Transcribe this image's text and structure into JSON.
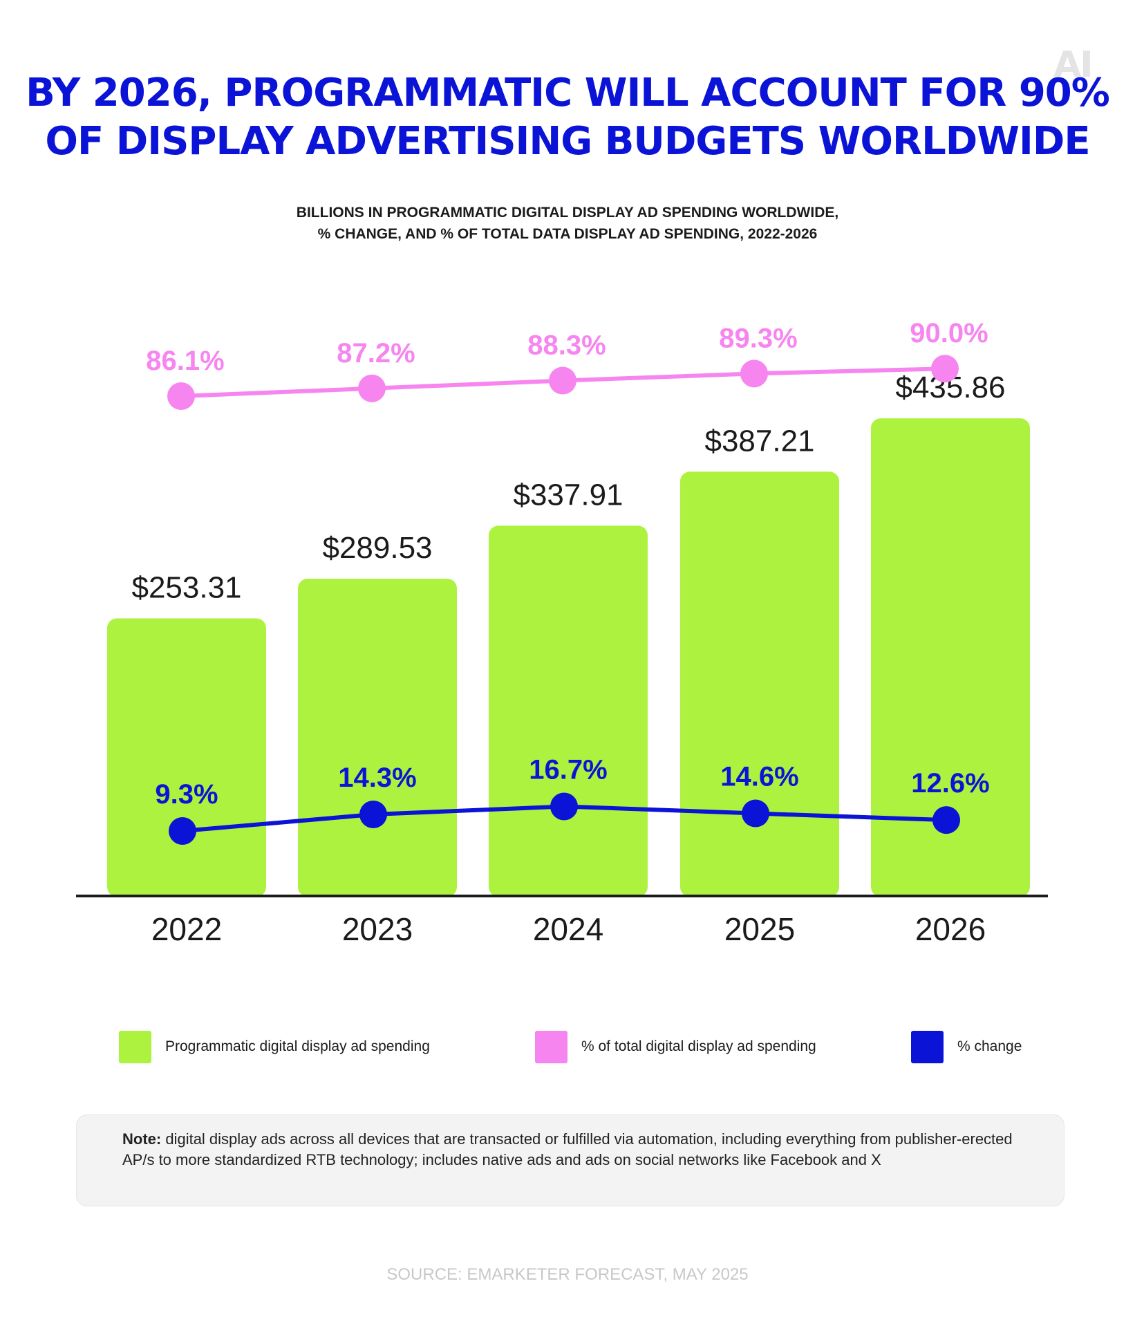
{
  "brand": {
    "logo_text": "AI"
  },
  "title": {
    "line1": "BY 2026, PROGRAMMATIC WILL ACCOUNT FOR 90%",
    "line2": "OF DISPLAY ADVERTISING BUDGETS WORLDWIDE"
  },
  "subtitle": {
    "line1": "BILLIONS IN PROGRAMMATIC  DIGITAL DISPLAY AD SPENDING WORLDWIDE,",
    "line2": "% CHANGE, AND % OF TOTAL DATA DISPLAY AD SPENDING, 2022-2026"
  },
  "colors": {
    "bar": "#adf23f",
    "share": "#f785f0",
    "change": "#0a13d6",
    "axis": "#1b1b1b",
    "text": "#1b1b1b"
  },
  "chart_data": {
    "type": "bar",
    "categories": [
      "2022",
      "2023",
      "2024",
      "2025",
      "2026"
    ],
    "series": [
      {
        "name": "Programmatic digital display ad spending",
        "kind": "bar",
        "values": [
          253.31,
          289.53,
          337.91,
          387.21,
          435.86
        ],
        "labels": [
          "$253.31",
          "$289.53",
          "$337.91",
          "$387.21",
          "$435.86"
        ]
      },
      {
        "name": "% of total  digital display ad spending",
        "kind": "line",
        "values": [
          86.1,
          87.2,
          88.3,
          89.3,
          90.0
        ],
        "labels": [
          "86.1%",
          "87.2%",
          "88.3%",
          "89.3%",
          "90.0%"
        ]
      },
      {
        "name": "% change",
        "kind": "line",
        "values": [
          9.3,
          14.3,
          16.7,
          14.6,
          12.6
        ],
        "labels": [
          "9.3%",
          "14.3%",
          "16.7%",
          "14.6%",
          "12.6%"
        ]
      }
    ],
    "ylim": [
      0,
      500
    ],
    "grid": false,
    "legend_position": "bottom"
  },
  "legend": {
    "items": [
      {
        "label": "Programmatic digital display ad spending"
      },
      {
        "label": "% of total  digital display ad spending"
      },
      {
        "label": "% change"
      }
    ]
  },
  "note": {
    "label": "Note:",
    "text": " digital display ads across all devices that are transacted or fulfilled via automation, including everything from publisher-erected AP/s to more standardized RTB technology; includes native ads and ads on social networks like Facebook and X"
  },
  "source": {
    "text": "SOURCE: EMARKETER FORECAST, MAY 2025"
  }
}
